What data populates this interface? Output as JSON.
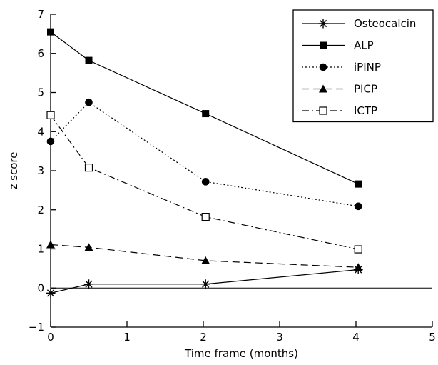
{
  "chart_data": {
    "type": "line",
    "title": "",
    "xlabel": "Time frame (months)",
    "ylabel": "z score",
    "xlim": [
      0,
      5
    ],
    "ylim": [
      -1,
      7
    ],
    "xticks": [
      0,
      1,
      2,
      3,
      4,
      5
    ],
    "yticks": [
      -1,
      0,
      1,
      2,
      3,
      4,
      5,
      6,
      7
    ],
    "grid": false,
    "reference_line_y": 0,
    "legend_position": "top-right",
    "series": [
      {
        "name": "Osteocalcin",
        "marker": "star",
        "line": "solid",
        "x": [
          0,
          0.5,
          2.03,
          4.03
        ],
        "y": [
          -0.13,
          0.1,
          0.1,
          0.47
        ]
      },
      {
        "name": "ALP",
        "marker": "filled-square",
        "line": "solid",
        "x": [
          0,
          0.5,
          2.03,
          4.03
        ],
        "y": [
          6.55,
          5.82,
          4.46,
          2.66
        ]
      },
      {
        "name": "iPINP",
        "marker": "filled-circle",
        "line": "dotted",
        "x": [
          0,
          0.5,
          2.03,
          4.03
        ],
        "y": [
          3.75,
          4.75,
          2.72,
          2.09
        ]
      },
      {
        "name": "PICP",
        "marker": "filled-triangle",
        "line": "dashed",
        "x": [
          0,
          0.5,
          2.03,
          4.03
        ],
        "y": [
          1.11,
          1.04,
          0.7,
          0.53
        ]
      },
      {
        "name": "ICTP",
        "marker": "open-square",
        "line": "dash-dot",
        "x": [
          0,
          0.5,
          2.03,
          4.03
        ],
        "y": [
          4.42,
          3.08,
          1.82,
          0.99
        ]
      }
    ]
  }
}
